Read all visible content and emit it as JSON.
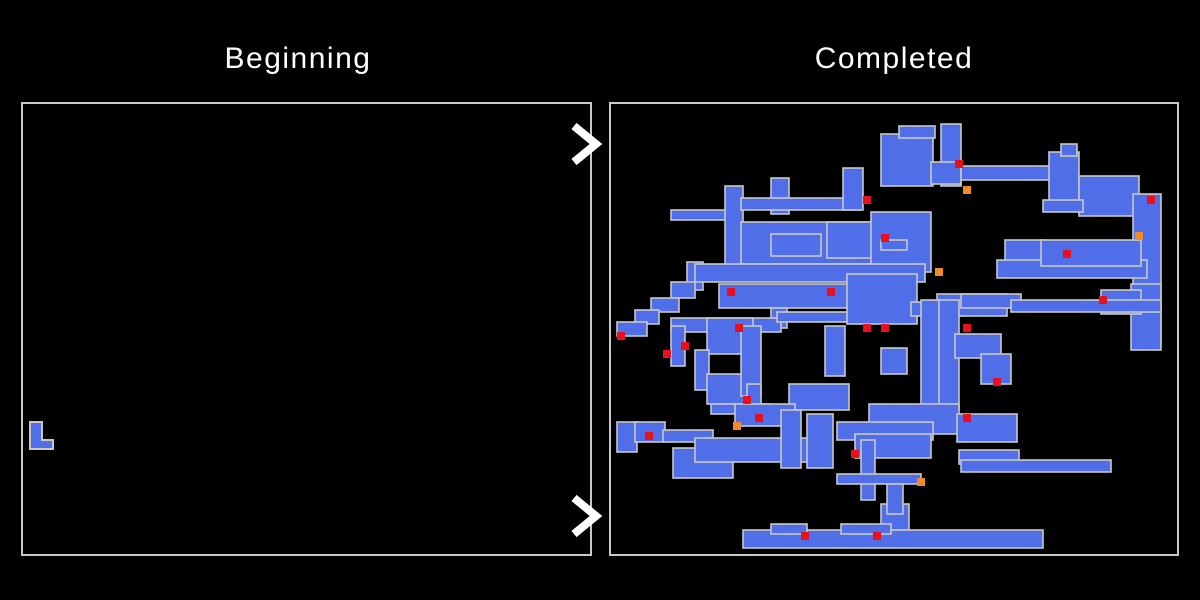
{
  "left_title": "Beginning",
  "right_title": "Completed",
  "colors": {
    "background": "#000000",
    "room_fill": "#4f6ee8",
    "room_border": "#c8c8c8",
    "save_room": "#e8101a",
    "warp_room": "#f08c28",
    "arrow": "#ffffff"
  },
  "icons": [
    "chevron-right-icon",
    "chevron-right-icon"
  ]
}
